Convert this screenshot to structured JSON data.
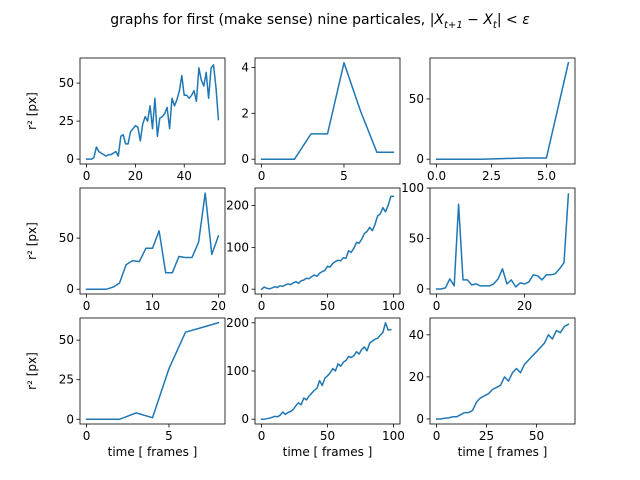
{
  "figure": {
    "title_text": "graphs for first (make sense) nine particales, ",
    "title_math": "|X",
    "title_math_sub1": "t+1",
    "title_math_mid": " − X",
    "title_math_sub2": "t",
    "title_math_end": "| < ε",
    "ylabel": "r² [px]",
    "xlabel": "time [ frames ]",
    "line_color": "#1f77b4"
  },
  "chart_data": [
    {
      "type": "line",
      "xlim": [
        -2.7,
        56.7
      ],
      "ylim": [
        -3.2,
        66.5
      ],
      "xticks": [
        0,
        20,
        40
      ],
      "xtick_labels": [
        "0",
        "20",
        "40"
      ],
      "yticks": [
        0,
        25,
        50
      ],
      "ytick_labels": [
        "0",
        "25",
        "50"
      ],
      "ylabel": "r² [px]",
      "xlabel": "",
      "x": [
        0,
        1,
        2,
        3,
        4,
        5,
        6,
        7,
        8,
        9,
        10,
        11,
        12,
        13,
        14,
        15,
        16,
        17,
        18,
        19,
        20,
        21,
        22,
        23,
        24,
        25,
        26,
        27,
        28,
        29,
        30,
        31,
        32,
        33,
        34,
        35,
        36,
        37,
        38,
        39,
        40,
        41,
        42,
        43,
        44,
        45,
        46,
        47,
        48,
        49,
        50,
        51,
        52,
        53,
        54
      ],
      "y": [
        0,
        0,
        0,
        1,
        8,
        5,
        4,
        3,
        2,
        3,
        3,
        4,
        5,
        2,
        15,
        16,
        10,
        10,
        18,
        20,
        22,
        21,
        12,
        23,
        28,
        25,
        35,
        20,
        40,
        15,
        27,
        28,
        30,
        34,
        20,
        40,
        35,
        39,
        45,
        55,
        42,
        42,
        40,
        42,
        45,
        38,
        60,
        52,
        48,
        57,
        40,
        60,
        62,
        47,
        26
      ]
    },
    {
      "type": "line",
      "xlim": [
        -0.4,
        8.4
      ],
      "ylim": [
        -0.21,
        4.41
      ],
      "xticks": [
        0,
        5
      ],
      "xtick_labels": [
        "0",
        "5"
      ],
      "yticks": [
        0,
        2,
        4
      ],
      "ytick_labels": [
        "0",
        "2",
        "4"
      ],
      "ylabel": "",
      "xlabel": "",
      "x": [
        0,
        1,
        2,
        3,
        4,
        5,
        6,
        7,
        8
      ],
      "y": [
        0,
        0,
        0,
        1.1,
        1.1,
        4.2,
        2.1,
        0.3,
        0.3
      ]
    },
    {
      "type": "line",
      "xlim": [
        -0.3,
        6.3
      ],
      "ylim": [
        -4,
        84
      ],
      "xticks": [
        0,
        2.5,
        5
      ],
      "xtick_labels": [
        "0.0",
        "2.5",
        "5.0"
      ],
      "yticks": [
        0,
        50
      ],
      "ytick_labels": [
        "0",
        "50"
      ],
      "ylabel": "",
      "xlabel": "",
      "x": [
        0,
        1,
        2,
        3,
        4,
        5,
        6
      ],
      "y": [
        0,
        0,
        0,
        0.5,
        1,
        1,
        80
      ]
    },
    {
      "type": "line",
      "xlim": [
        -1,
        21
      ],
      "ylim": [
        -4.7,
        99
      ],
      "xticks": [
        0,
        10,
        20
      ],
      "xtick_labels": [
        "0",
        "10",
        "20"
      ],
      "yticks": [
        0,
        50
      ],
      "ytick_labels": [
        "0",
        "50"
      ],
      "ylabel": "r² [px]",
      "xlabel": "",
      "x": [
        0,
        1,
        2,
        3,
        4,
        5,
        6,
        7,
        8,
        9,
        10,
        11,
        12,
        13,
        14,
        15,
        16,
        17,
        18,
        19,
        20
      ],
      "y": [
        0,
        0,
        0,
        0,
        2,
        6,
        24,
        28,
        27,
        40,
        40,
        57,
        16,
        16,
        32,
        31,
        31,
        46,
        94,
        34,
        52
      ]
    },
    {
      "type": "line",
      "xlim": [
        -5,
        105
      ],
      "ylim": [
        -11.5,
        242
      ],
      "xticks": [
        0,
        50,
        100
      ],
      "xtick_labels": [
        "0",
        "50",
        "100"
      ],
      "yticks": [
        0,
        100,
        200
      ],
      "ytick_labels": [
        "0",
        "100",
        "200"
      ],
      "ylabel": "",
      "xlabel": "",
      "x": [
        0,
        2,
        4,
        6,
        8,
        10,
        12,
        14,
        16,
        18,
        20,
        22,
        24,
        26,
        28,
        30,
        32,
        34,
        36,
        38,
        40,
        42,
        44,
        46,
        48,
        50,
        52,
        54,
        56,
        58,
        60,
        62,
        64,
        66,
        68,
        70,
        72,
        74,
        76,
        78,
        80,
        82,
        84,
        86,
        88,
        90,
        92,
        94,
        96,
        98,
        100
      ],
      "y": [
        0,
        5,
        2,
        1,
        3,
        6,
        4,
        8,
        7,
        10,
        13,
        11,
        15,
        18,
        14,
        20,
        22,
        26,
        25,
        30,
        34,
        31,
        38,
        42,
        45,
        55,
        53,
        62,
        66,
        69,
        68,
        75,
        74,
        92,
        88,
        98,
        112,
        110,
        120,
        133,
        138,
        148,
        140,
        155,
        175,
        180,
        195,
        185,
        200,
        222,
        222
      ]
    },
    {
      "type": "line",
      "xlim": [
        -1.5,
        31.5
      ],
      "ylim": [
        -5,
        100
      ],
      "xticks": [
        0,
        20
      ],
      "xtick_labels": [
        "0",
        "20"
      ],
      "yticks": [
        0,
        50,
        100
      ],
      "ytick_labels": [
        "0",
        "50",
        "100"
      ],
      "ylabel": "",
      "xlabel": "",
      "x": [
        0,
        1,
        2,
        3,
        4,
        5,
        6,
        7,
        8,
        9,
        10,
        11,
        12,
        13,
        14,
        15,
        16,
        17,
        18,
        19,
        20,
        21,
        22,
        23,
        24,
        25,
        26,
        27,
        28,
        29,
        30
      ],
      "y": [
        0,
        0,
        1,
        10,
        3,
        84,
        9,
        9,
        4,
        5,
        3,
        3,
        3,
        5,
        10,
        20,
        5,
        9,
        2,
        6,
        5,
        7,
        14,
        13,
        9,
        14,
        14,
        15,
        20,
        26,
        94
      ]
    },
    {
      "type": "line",
      "xlim": [
        -0.4,
        8.4
      ],
      "ylim": [
        -3,
        64
      ],
      "xticks": [
        0,
        5
      ],
      "xtick_labels": [
        "0",
        "5"
      ],
      "yticks": [
        0,
        25,
        50
      ],
      "ytick_labels": [
        "0",
        "25",
        "50"
      ],
      "ylabel": "r² [px]",
      "xlabel": "time [ frames ]",
      "x": [
        0,
        1,
        2,
        3,
        4,
        5,
        6,
        7,
        8
      ],
      "y": [
        0,
        0,
        0,
        4,
        1,
        32,
        55,
        58,
        61
      ]
    },
    {
      "type": "line",
      "xlim": [
        -5,
        105
      ],
      "ylim": [
        -10,
        210
      ],
      "xticks": [
        0,
        50,
        100
      ],
      "xtick_labels": [
        "0",
        "50",
        "100"
      ],
      "yticks": [
        0,
        100,
        200
      ],
      "ytick_labels": [
        "0",
        "100",
        "200"
      ],
      "ylabel": "",
      "xlabel": "time [ frames ]",
      "x": [
        0,
        2,
        4,
        6,
        8,
        10,
        12,
        14,
        16,
        18,
        20,
        22,
        24,
        26,
        28,
        30,
        32,
        34,
        36,
        38,
        40,
        42,
        44,
        46,
        48,
        50,
        52,
        54,
        56,
        58,
        60,
        62,
        64,
        66,
        68,
        70,
        72,
        74,
        76,
        78,
        80,
        82,
        84,
        86,
        88,
        90,
        92,
        94,
        96,
        98
      ],
      "y": [
        0,
        0,
        1,
        2,
        4,
        6,
        5,
        8,
        15,
        10,
        14,
        16,
        20,
        28,
        34,
        30,
        44,
        40,
        48,
        54,
        60,
        64,
        80,
        70,
        85,
        90,
        96,
        105,
        100,
        115,
        110,
        118,
        122,
        130,
        128,
        132,
        140,
        135,
        145,
        150,
        142,
        158,
        162,
        166,
        168,
        174,
        180,
        200,
        185,
        186
      ]
    },
    {
      "type": "line",
      "xlim": [
        -3.3,
        69.3
      ],
      "ylim": [
        -2.4,
        48
      ],
      "xticks": [
        0,
        25,
        50
      ],
      "xtick_labels": [
        "0",
        "25",
        "50"
      ],
      "yticks": [
        0,
        20,
        40
      ],
      "ytick_labels": [
        "0",
        "20",
        "40"
      ],
      "ylabel": "",
      "xlabel": "time [ frames ]",
      "x": [
        0,
        2,
        4,
        6,
        8,
        10,
        12,
        14,
        16,
        18,
        20,
        22,
        24,
        26,
        28,
        30,
        32,
        34,
        36,
        38,
        40,
        42,
        44,
        46,
        48,
        50,
        52,
        54,
        56,
        58,
        60,
        62,
        64,
        66
      ],
      "y": [
        0,
        0,
        0.3,
        0.5,
        1,
        1,
        2,
        3,
        3,
        4,
        8,
        10,
        11,
        12,
        14,
        15,
        16,
        20,
        18,
        22,
        24,
        22,
        26,
        28,
        30,
        32,
        34,
        36,
        40,
        38,
        42,
        41,
        44,
        45
      ]
    }
  ]
}
